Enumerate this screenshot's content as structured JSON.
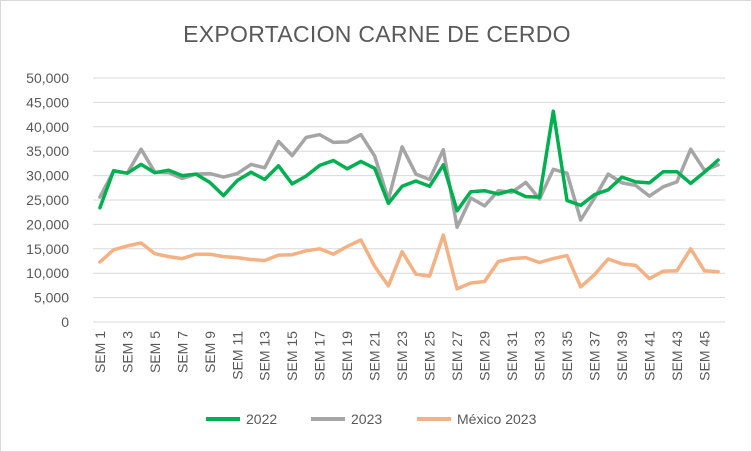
{
  "chart_data": {
    "type": "line",
    "title": "EXPORTACION CARNE DE CERDO",
    "xlabel": "",
    "ylabel": "",
    "ylim": [
      0,
      50000
    ],
    "yticks": [
      "0",
      "5,000",
      "10,000",
      "15,000",
      "20,000",
      "25,000",
      "30,000",
      "35,000",
      "40,000",
      "45,000",
      "50,000"
    ],
    "ytick_values": [
      0,
      5000,
      10000,
      15000,
      20000,
      25000,
      30000,
      35000,
      40000,
      45000,
      50000
    ],
    "categories": [
      "SEM 1",
      "SEM 2",
      "SEM 3",
      "SEM 4",
      "SEM 5",
      "SEM 6",
      "SEM 7",
      "SEM 8",
      "SEM 9",
      "SEM 10",
      "SEM 11",
      "SEM 12",
      "SEM 13",
      "SEM 14",
      "SEM 15",
      "SEM 16",
      "SEM 17",
      "SEM 18",
      "SEM 19",
      "SEM 20",
      "SEM 21",
      "SEM 22",
      "SEM 23",
      "SEM 24",
      "SEM 25",
      "SEM 26",
      "SEM 27",
      "SEM 28",
      "SEM 29",
      "SEM 30",
      "SEM 31",
      "SEM 32",
      "SEM 33",
      "SEM 34",
      "SEM 35",
      "SEM 36",
      "SEM 37",
      "SEM 38",
      "SEM 39",
      "SEM 40",
      "SEM 41",
      "SEM 42",
      "SEM 43",
      "SEM 44",
      "SEM 45",
      "SEM 46"
    ],
    "shown_tick_labels": [
      "SEM 1",
      "SEM 3",
      "SEM 5",
      "SEM 7",
      "SEM 9",
      "SEM 11",
      "SEM 13",
      "SEM 15",
      "SEM 17",
      "SEM 19",
      "SEM 21",
      "SEM 23",
      "SEM 25",
      "SEM 27",
      "SEM 29",
      "SEM 31",
      "SEM 33",
      "SEM 35",
      "SEM 37",
      "SEM 39",
      "SEM 41",
      "SEM 43",
      "SEM 45"
    ],
    "grid": true,
    "legend": "bottom",
    "series": [
      {
        "name": "2022",
        "color": "#00b050",
        "values": [
          23400,
          31000,
          30500,
          32300,
          30600,
          31100,
          30000,
          30300,
          28600,
          25900,
          29000,
          30700,
          29200,
          32000,
          28300,
          29900,
          32100,
          33100,
          31400,
          32900,
          31500,
          24300,
          27800,
          28900,
          27800,
          32200,
          22800,
          26700,
          26900,
          26200,
          27000,
          25700,
          25600,
          43200,
          24900,
          23900,
          26100,
          27100,
          29700,
          28700,
          28500,
          30800,
          30800,
          28400,
          30700,
          33200
        ]
      },
      {
        "name": "2023",
        "color": "#a5a5a5",
        "values": [
          25600,
          30900,
          30500,
          35400,
          30700,
          30600,
          29400,
          30300,
          30400,
          29700,
          30400,
          32300,
          31600,
          37000,
          34100,
          37800,
          38400,
          36800,
          36900,
          38400,
          34000,
          25100,
          35900,
          30300,
          29200,
          35300,
          19400,
          25400,
          23800,
          26900,
          26600,
          28600,
          25200,
          31300,
          30500,
          20900,
          25400,
          30300,
          28500,
          28000,
          25800,
          27700,
          28700,
          35400,
          31100,
          32200
        ]
      },
      {
        "name": "México 2023",
        "color": "#f4b183",
        "values": [
          12300,
          14800,
          15600,
          16200,
          14000,
          13400,
          13000,
          13900,
          13900,
          13400,
          13200,
          12800,
          12600,
          13700,
          13800,
          14600,
          15000,
          13900,
          15500,
          16800,
          11400,
          7400,
          14400,
          9800,
          9400,
          17800,
          6800,
          8000,
          8300,
          12400,
          13000,
          13200,
          12200,
          13000,
          13600,
          7200,
          9700,
          12900,
          11900,
          11600,
          8900,
          10400,
          10500,
          15000,
          10500,
          10300
        ]
      }
    ]
  }
}
